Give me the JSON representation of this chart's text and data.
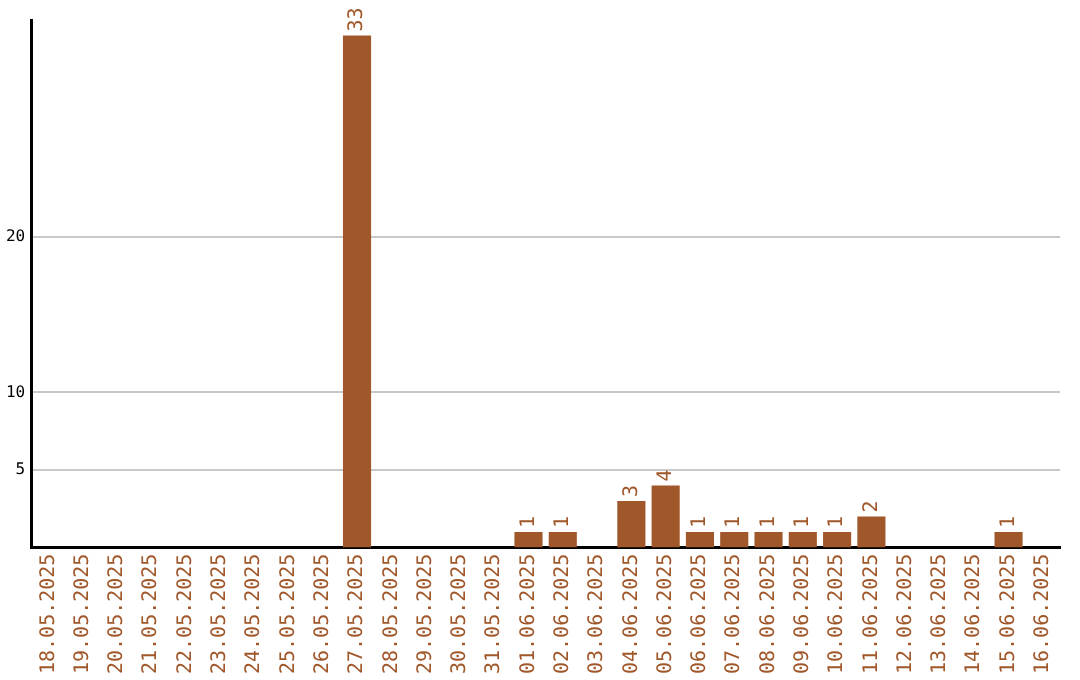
{
  "chart_data": {
    "type": "bar",
    "categories": [
      "18.05.2025",
      "19.05.2025",
      "20.05.2025",
      "21.05.2025",
      "22.05.2025",
      "23.05.2025",
      "24.05.2025",
      "25.05.2025",
      "26.05.2025",
      "27.05.2025",
      "28.05.2025",
      "29.05.2025",
      "30.05.2025",
      "31.05.2025",
      "01.06.2025",
      "02.06.2025",
      "03.06.2025",
      "04.06.2025",
      "05.06.2025",
      "06.06.2025",
      "07.06.2025",
      "08.06.2025",
      "09.06.2025",
      "10.06.2025",
      "11.06.2025",
      "12.06.2025",
      "13.06.2025",
      "14.06.2025",
      "15.06.2025",
      "16.06.2025"
    ],
    "values": [
      0,
      0,
      0,
      0,
      0,
      0,
      0,
      0,
      0,
      33,
      0,
      0,
      0,
      0,
      1,
      1,
      0,
      3,
      4,
      1,
      1,
      1,
      1,
      1,
      2,
      0,
      0,
      0,
      1,
      0
    ],
    "value_labels": [
      null,
      null,
      null,
      null,
      null,
      null,
      null,
      null,
      null,
      "33",
      null,
      null,
      null,
      null,
      "1",
      "1",
      null,
      "3",
      "4",
      "1",
      "1",
      "1",
      "1",
      "1",
      "2",
      null,
      null,
      null,
      "1",
      null
    ],
    "color": "#a0572a",
    "ylim": [
      0,
      34
    ],
    "yticks": [
      5,
      10,
      20
    ],
    "grid": "y",
    "legend": false
  }
}
